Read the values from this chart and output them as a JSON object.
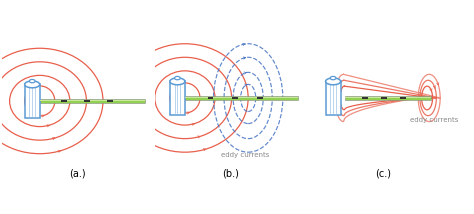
{
  "labels": [
    "(a.)",
    "(b.)",
    "(c.)"
  ],
  "colors": {
    "red_field": "#e8604c",
    "blue_coil": "#5b9bd5",
    "green_board": "#92d050",
    "dark_dash": "#333333",
    "eddy_blue": "#4472c4",
    "background": "#ffffff"
  }
}
